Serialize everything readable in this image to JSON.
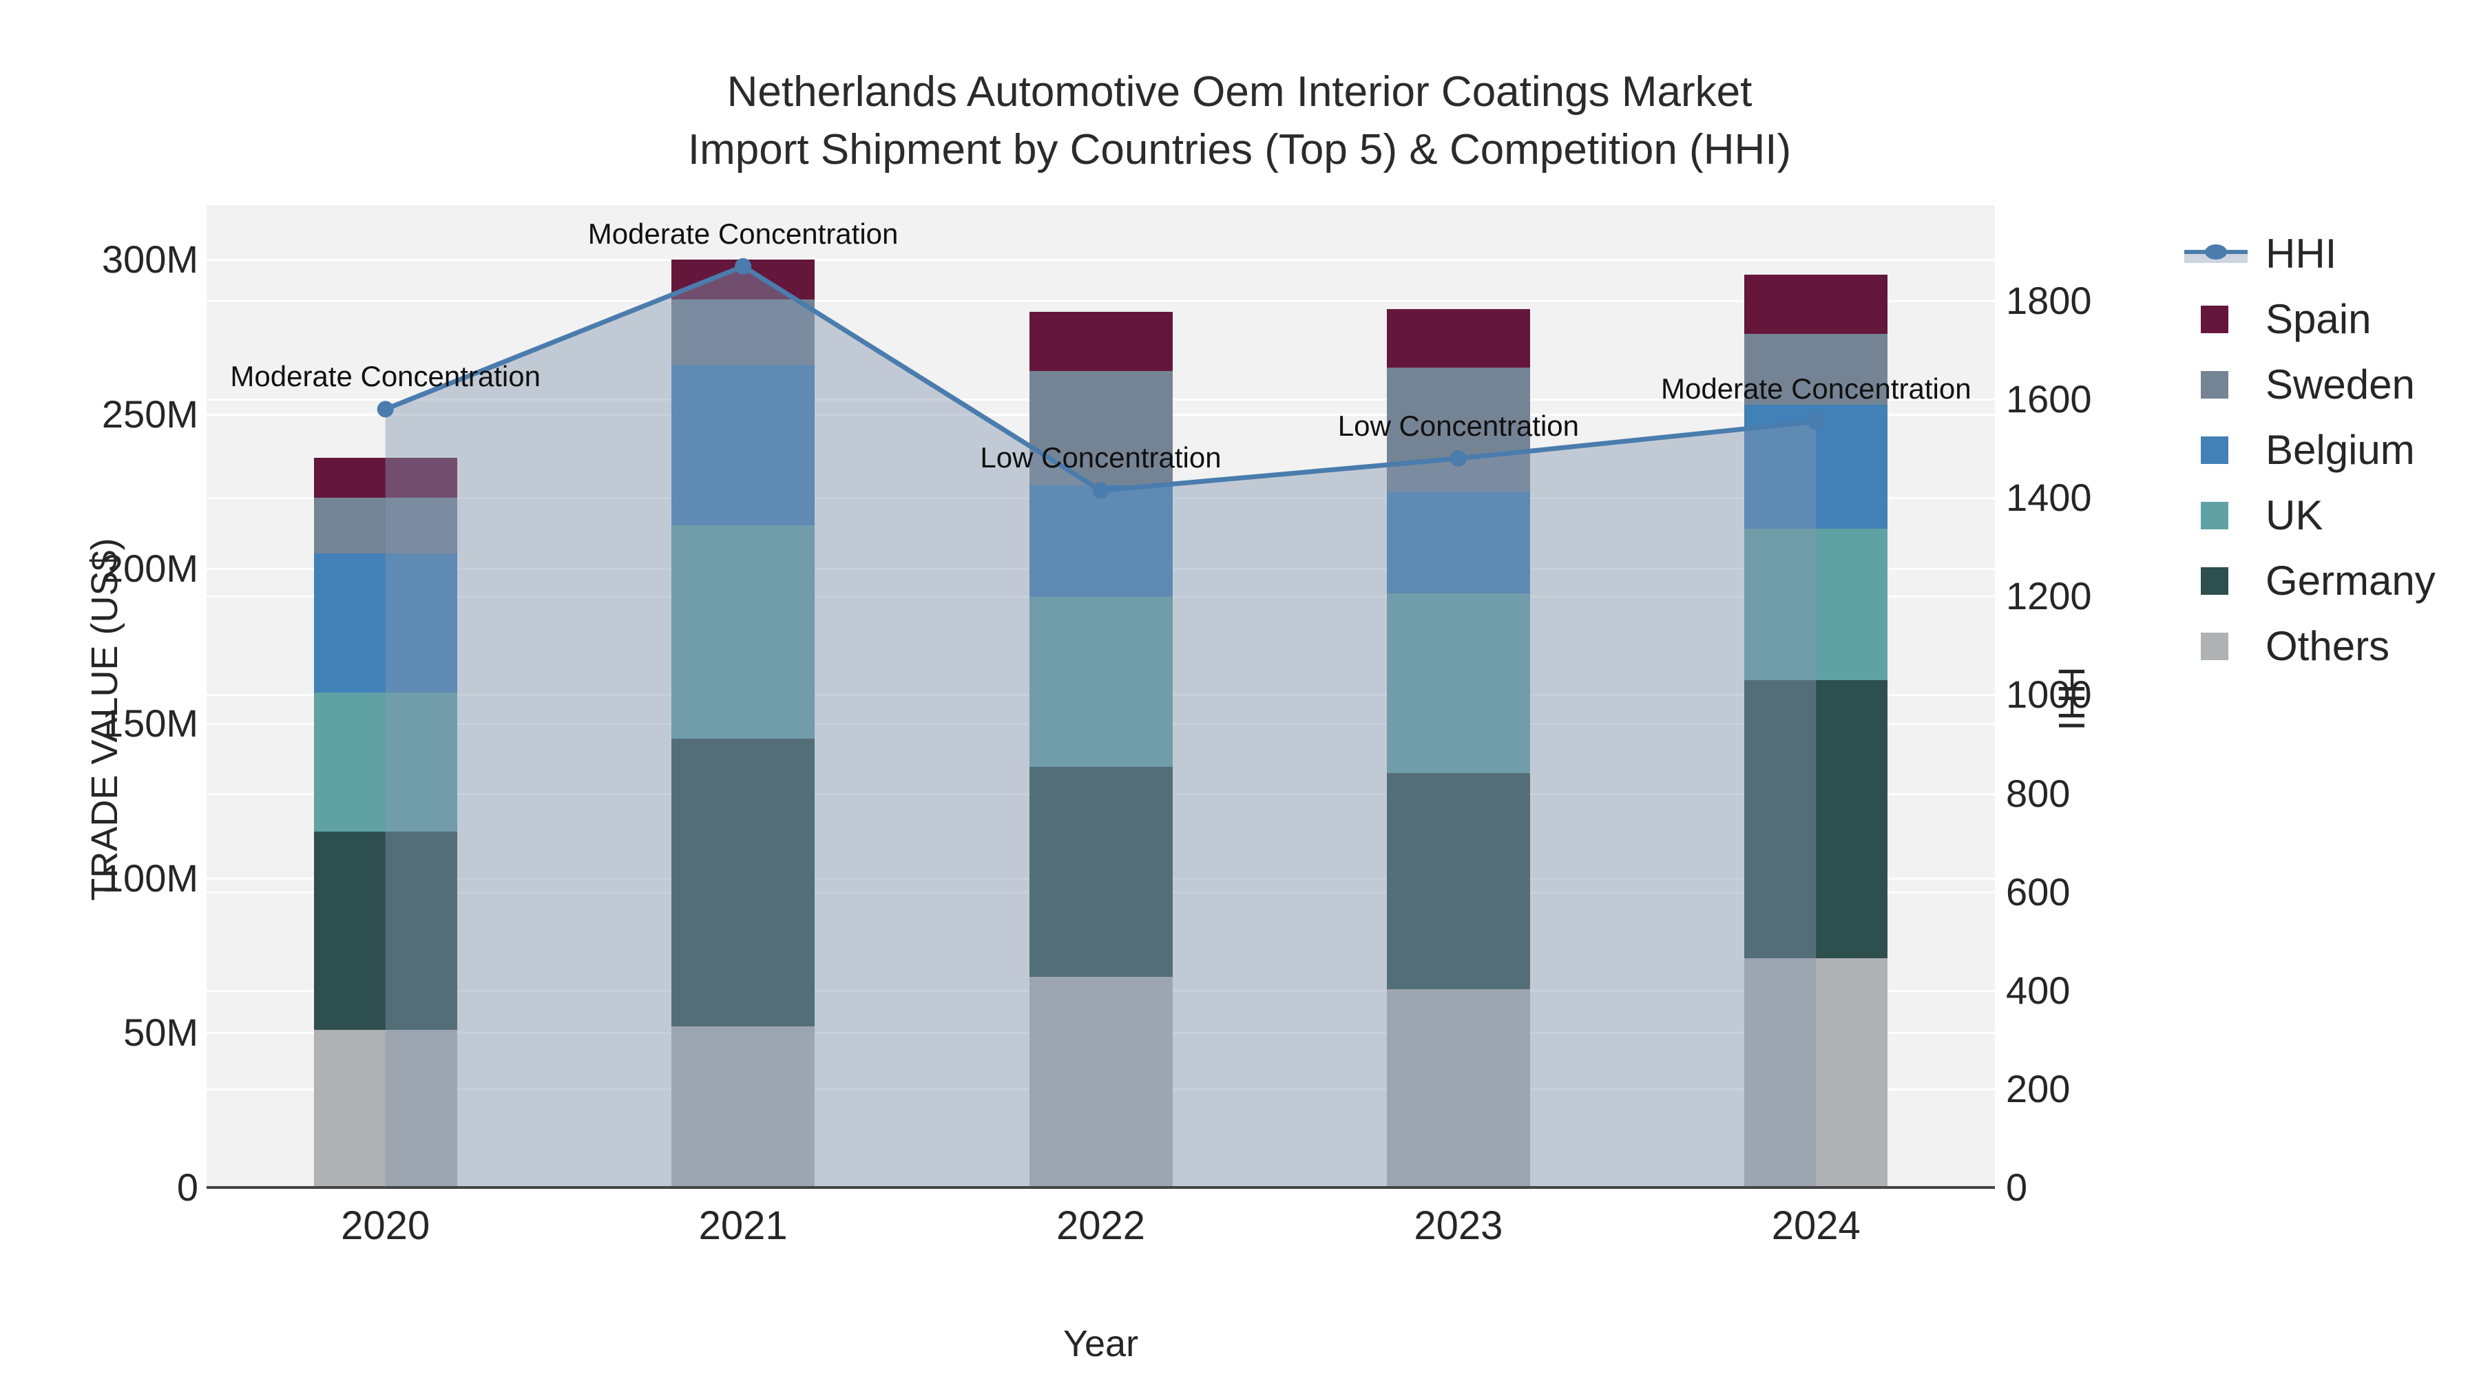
{
  "title": {
    "line1": "Netherlands Automotive Oem Interior Coatings Market",
    "line2": "Import Shipment by Countries (Top 5) & Competition (HHI)"
  },
  "chart_data": {
    "type": "bar+line",
    "categories": [
      "2020",
      "2021",
      "2022",
      "2023",
      "2024"
    ],
    "x_title": "Year",
    "y1_axis": {
      "title": "TRADE VALUE (US$)",
      "tick_values": [
        0,
        50,
        100,
        150,
        200,
        250,
        300
      ],
      "tick_labels": [
        "0",
        "50M",
        "100M",
        "150M",
        "200M",
        "250M",
        "300M"
      ],
      "max": 317.6,
      "units": "millions US$"
    },
    "y2_axis": {
      "title": "HHI",
      "tick_values": [
        0,
        200,
        400,
        600,
        800,
        1000,
        1200,
        1400,
        1600,
        1800
      ],
      "tick_labels": [
        "0",
        "200",
        "400",
        "600",
        "800",
        "1000",
        "1200",
        "1400",
        "1600",
        "1800"
      ],
      "max": 1994
    },
    "bar_series_bottom_to_top": [
      {
        "name": "Others",
        "color": "#b0b1b3",
        "values": [
          51,
          52,
          68,
          64,
          74
        ]
      },
      {
        "name": "Germany",
        "color": "#2d4f4e",
        "values": [
          64,
          93,
          68,
          70,
          90
        ]
      },
      {
        "name": "UK",
        "color": "#60a2a4",
        "values": [
          45,
          69,
          55,
          58,
          49
        ]
      },
      {
        "name": "Belgium",
        "color": "#4280b8",
        "values": [
          45,
          52,
          36,
          33,
          40
        ]
      },
      {
        "name": "Sweden",
        "color": "#758495",
        "values": [
          18,
          21,
          37,
          40,
          23
        ]
      },
      {
        "name": "Spain",
        "color": "#64163b",
        "values": [
          13,
          13,
          19,
          19,
          19
        ]
      }
    ],
    "bar_totals": [
      236,
      300,
      283,
      284,
      295
    ],
    "hhi_series": {
      "name": "HHI",
      "line_color": "#4a7cad",
      "area_fill": "rgba(132,150,176,0.44)",
      "values": [
        1580,
        1870,
        1415,
        1480,
        1555
      ]
    },
    "annotations": [
      {
        "x": "2020",
        "text": "Moderate Concentration"
      },
      {
        "x": "2021",
        "text": "Moderate Concentration"
      },
      {
        "x": "2022",
        "text": "Low Concentration"
      },
      {
        "x": "2023",
        "text": "Low Concentration"
      },
      {
        "x": "2024",
        "text": "Moderate Concentration"
      }
    ],
    "legend_order": [
      "HHI",
      "Spain",
      "Sweden",
      "Belgium",
      "UK",
      "Germany",
      "Others"
    ],
    "grid": "on",
    "legend_position": "right",
    "plot_background": "#f1f2f1"
  }
}
